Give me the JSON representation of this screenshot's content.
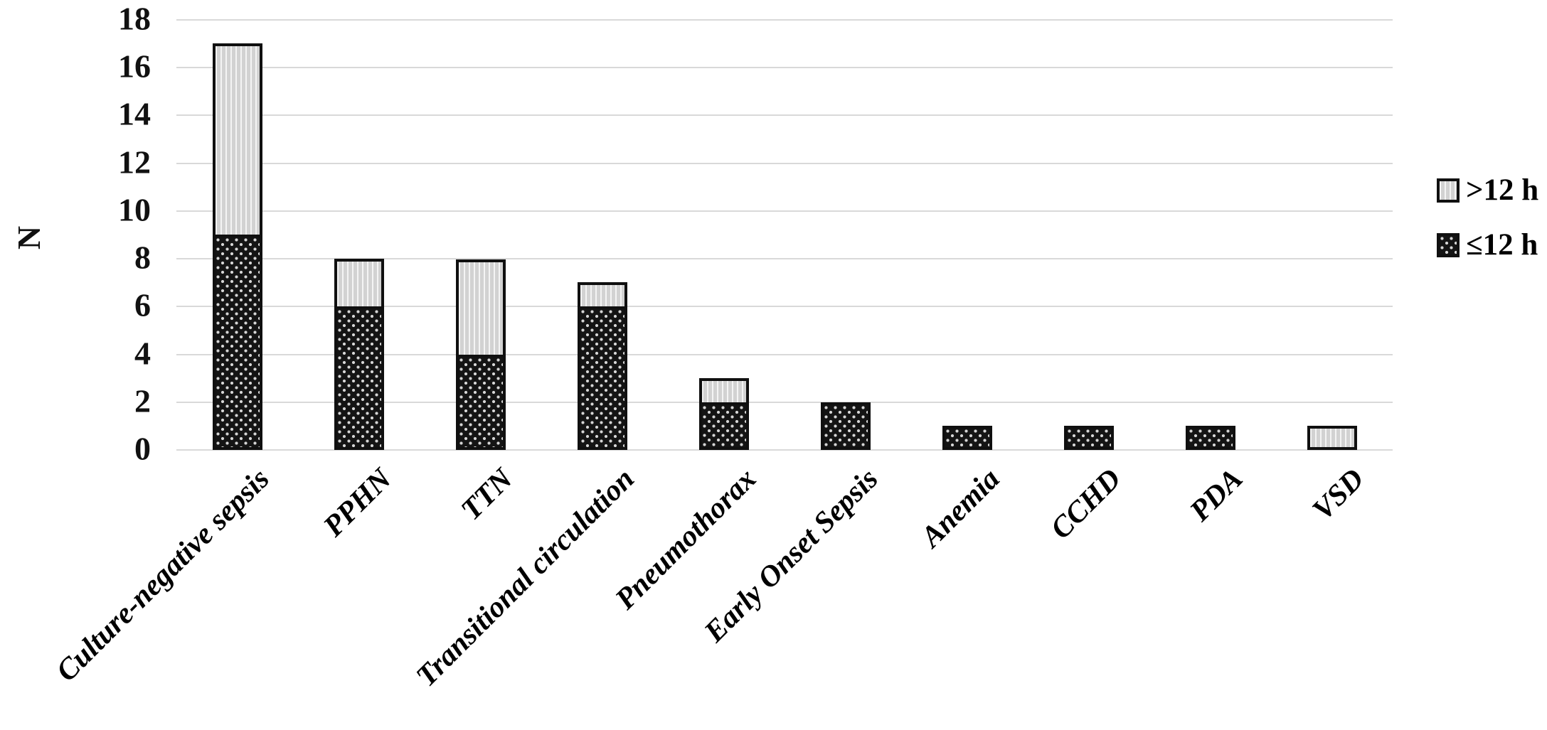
{
  "chart_data": {
    "type": "bar",
    "stacked": true,
    "title": "",
    "xlabel": "",
    "ylabel": "N",
    "categories": [
      "Culture-negative sepsis",
      "PPHN",
      "TTN",
      "Transitional circulation",
      "Pneumothorax",
      "Early Onset Sepsis",
      "Anemia",
      "CCHD",
      "PDA",
      "VSD"
    ],
    "series": [
      {
        "name": "≤12 h",
        "pattern": "dots-dark",
        "values": [
          9,
          6,
          4,
          6,
          2,
          2,
          1,
          1,
          1,
          0
        ]
      },
      {
        "name": ">12 h",
        "pattern": "stripes-light",
        "values": [
          8,
          2,
          4,
          1,
          1,
          0,
          0,
          0,
          0,
          1
        ]
      }
    ],
    "totals": [
      17,
      8,
      8,
      7,
      3,
      2,
      1,
      1,
      1,
      1
    ],
    "ylim": [
      0,
      18
    ],
    "yticks": [
      0,
      2,
      4,
      6,
      8,
      10,
      12,
      14,
      16,
      18
    ],
    "grid": true,
    "legend_position": "right",
    "legend_order": [
      ">12 h",
      "≤12 h"
    ],
    "colors": {
      "bar_dark": "#141414",
      "bar_light": "#d2d2d2",
      "border": "#101010",
      "gridline": "#d9d9d9",
      "text": "#000000"
    }
  }
}
